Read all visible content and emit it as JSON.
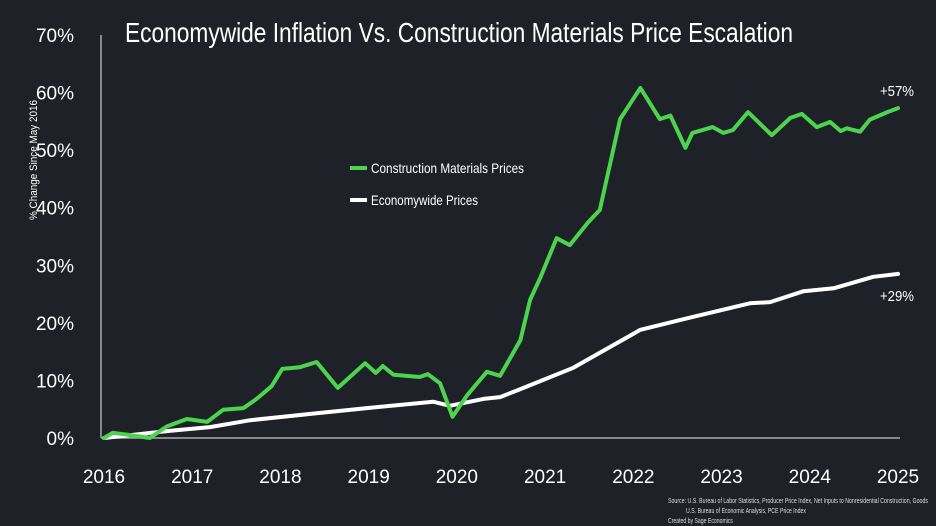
{
  "chart_data": {
    "type": "line",
    "title": "Economywide Inflation Vs. Construction Materials Price Escalation",
    "xlabel": "",
    "ylabel": "% Change Since May 2016",
    "xlim": [
      2016,
      2025
    ],
    "ylim": [
      0,
      70
    ],
    "x_ticks": [
      "2016",
      "2017",
      "2018",
      "2019",
      "2020",
      "2021",
      "2022",
      "2023",
      "2024",
      "2025"
    ],
    "y_ticks": [
      "0%",
      "10%",
      "20%",
      "30%",
      "40%",
      "50%",
      "60%",
      "70%"
    ],
    "grid": false,
    "legend_placement": "center-left",
    "series": [
      {
        "name": "Construction Materials Prices",
        "color": "#4cd44e",
        "end_label": "+57%",
        "x": [
          2016.0,
          2016.1,
          2016.3,
          2016.52,
          2016.71,
          2016.94,
          2017.17,
          2017.35,
          2017.58,
          2017.73,
          2017.9,
          2018.02,
          2018.22,
          2018.41,
          2018.65,
          2018.96,
          2019.08,
          2019.16,
          2019.28,
          2019.58,
          2019.67,
          2019.81,
          2019.95,
          2020.12,
          2020.34,
          2020.49,
          2020.72,
          2020.83,
          2020.95,
          2021.13,
          2021.28,
          2021.49,
          2021.62,
          2021.85,
          2022.08,
          2022.3,
          2022.42,
          2022.59,
          2022.67,
          2022.9,
          2023.02,
          2023.13,
          2023.3,
          2023.57,
          2023.78,
          2023.91,
          2024.08,
          2024.23,
          2024.35,
          2024.42,
          2024.57,
          2024.68,
          2024.88,
          2025.0
        ],
        "values": [
          0,
          0.9,
          0.5,
          0,
          2,
          3.3,
          2.8,
          4.9,
          5.2,
          6.8,
          9,
          12,
          12.3,
          13.2,
          8.7,
          13,
          11.3,
          12.5,
          11,
          10.6,
          11.1,
          9.5,
          3.7,
          7.5,
          11.5,
          10.8,
          17,
          24,
          28,
          34.7,
          33.5,
          37.5,
          39.6,
          55.4,
          60.8,
          55.4,
          56,
          50.4,
          53,
          54,
          53,
          53.5,
          56.6,
          52.6,
          55.6,
          56.3,
          54,
          54.9,
          53.3,
          53.8,
          53.2,
          55.3,
          56.6,
          57.3
        ]
      },
      {
        "name": "Economywide Prices",
        "color": "#ffffff",
        "end_label": "+29%",
        "x": [
          2016.0,
          2016.71,
          2017.2,
          2017.66,
          2018.41,
          2018.98,
          2019.73,
          2019.92,
          2020.3,
          2020.49,
          2020.72,
          2021.32,
          2022.08,
          2022.61,
          2023.32,
          2023.55,
          2023.93,
          2024.27,
          2024.72,
          2025.0
        ],
        "values": [
          0,
          1.2,
          1.9,
          3.1,
          4.3,
          5.2,
          6.3,
          5.6,
          6.8,
          7.1,
          8.5,
          12.2,
          18.8,
          20.8,
          23.4,
          23.6,
          25.5,
          26,
          28,
          28.5
        ]
      }
    ],
    "source_lines": [
      "Source: U.S. Bureau of Labor Statistics, Producer Price Index, Net Inputs to Nonresidential Construction, Goods",
      "U.S. Bureau of Economic Analysis, PCE Price Index",
      "Created by Sage Economics"
    ]
  }
}
